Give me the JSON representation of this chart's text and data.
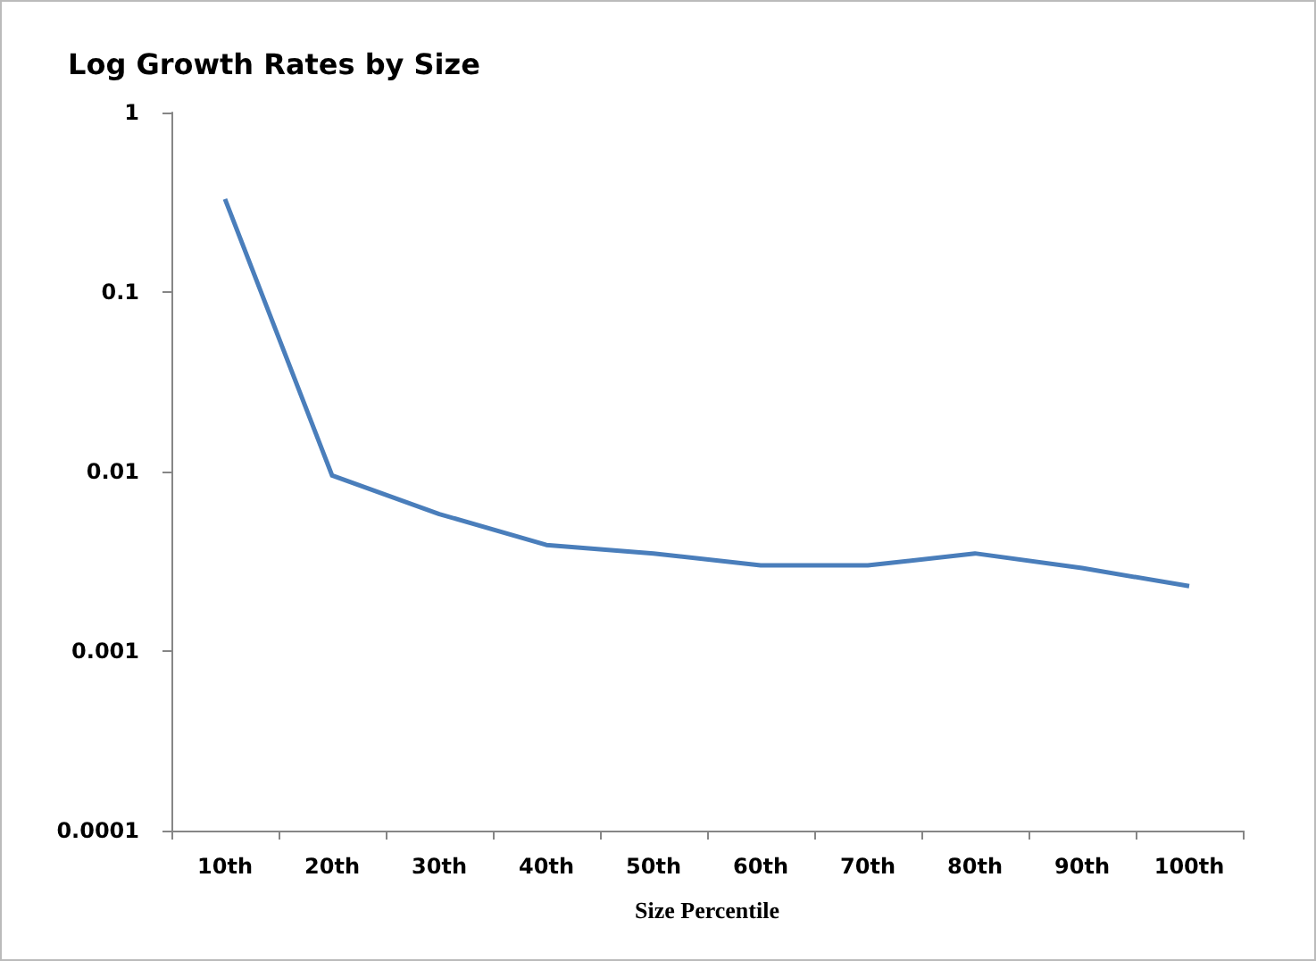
{
  "chart_data": {
    "type": "line",
    "title": "Log Growth Rates by Size",
    "xlabel": "Size Percentile",
    "categories": [
      "10th",
      "20th",
      "30th",
      "40th",
      "50th",
      "60th",
      "70th",
      "80th",
      "90th",
      "100th"
    ],
    "series": [
      {
        "color": "#4a7ebb",
        "values": [
          0.33,
          0.0095,
          0.0058,
          0.0039,
          0.0035,
          0.003,
          0.003,
          0.0035,
          0.0029,
          0.0023
        ]
      }
    ],
    "log": true,
    "ylim": [
      0.0001,
      1
    ],
    "yticks": [
      0.0001,
      0.001,
      0.01,
      0.1,
      1
    ],
    "grid": false,
    "marker": "none",
    "line_style": "solid"
  }
}
